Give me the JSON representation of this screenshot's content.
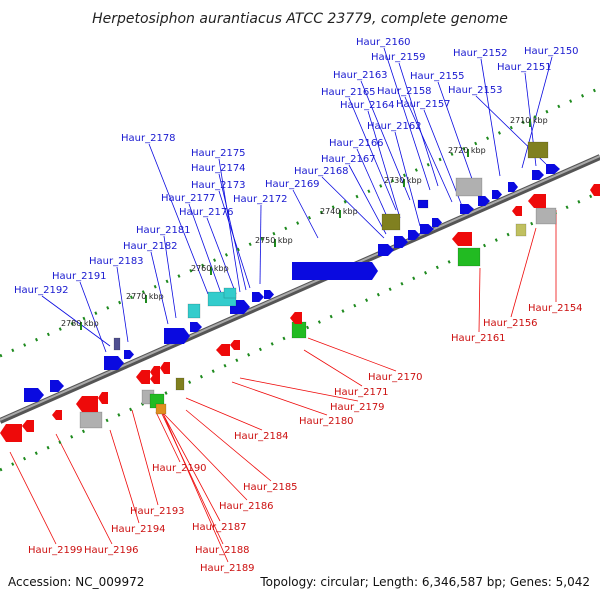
{
  "title": "Herpetosiphon aurantiacus ATCC 23779, complete genome",
  "accession": "Accession: NC_009972",
  "summary": "Topology: circular; Length: 6,346,587 bp; Genes: 5,042",
  "colors": {
    "forward": "#0a0ae0",
    "reverse": "#ee0a0a",
    "backbone": "#808080",
    "tick": "#1e8a1e",
    "cyan": "#33cccc",
    "olive": "#808020",
    "grey": "#b0b0b0",
    "green": "#22bb22"
  },
  "ticks": [
    "2710 kbp",
    "2720 kbp",
    "2730 kbp",
    "2740 kbp",
    "2750 kbp",
    "2760 kbp",
    "2770 kbp",
    "2780 kbp"
  ],
  "top_labels": [
    "Haur_2160",
    "Haur_2159",
    "Haur_2152",
    "Haur_2150",
    "Haur_2151",
    "Haur_2163",
    "Haur_2155",
    "Haur_2165",
    "Haur_2158",
    "Haur_2153",
    "Haur_2164",
    "Haur_2157",
    "Haur_2162",
    "Haur_2166",
    "Haur_2167",
    "Haur_2168",
    "Haur_2178",
    "Haur_2175",
    "Haur_2174",
    "Haur_2173",
    "Haur_2177",
    "Haur_2176",
    "Haur_2169",
    "Haur_2172",
    "Haur_2181",
    "Haur_2182",
    "Haur_2183",
    "Haur_2191",
    "Haur_2192"
  ],
  "bottom_labels": [
    "Haur_2154",
    "Haur_2156",
    "Haur_2161",
    "Haur_2170",
    "Haur_2171",
    "Haur_2179",
    "Haur_2180",
    "Haur_2184",
    "Haur_2185",
    "Haur_2190",
    "Haur_2186",
    "Haur_2193",
    "Haur_2187",
    "Haur_2194",
    "Haur_2188",
    "Haur_2189",
    "Haur_2199",
    "Haur_2196"
  ]
}
